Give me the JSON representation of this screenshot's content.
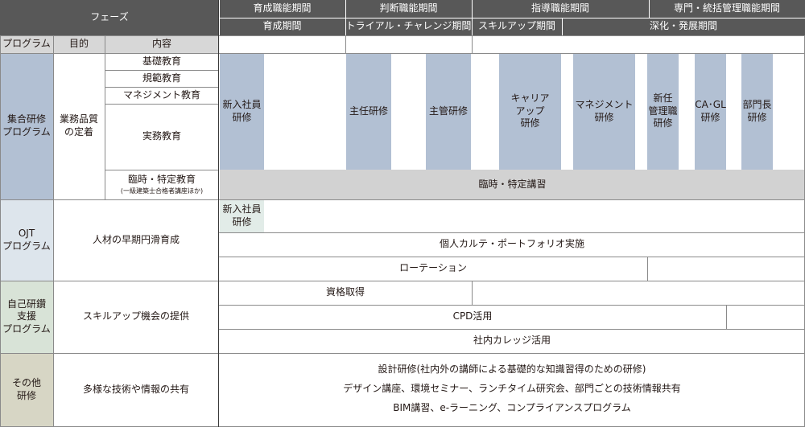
{
  "header": {
    "phase": "フェーズ",
    "periods_top": [
      "育成職能期間",
      "判断職能期間",
      "指導職能期間",
      "専門・統括管理職能期間"
    ],
    "periods_sub": [
      "育成期間",
      "トライアル・チャレンジ期間",
      "スキルアップ期間",
      "深化・発展期間"
    ]
  },
  "columns": {
    "program": "プログラム",
    "purpose": "目的",
    "content": "内容"
  },
  "group_training": {
    "program": "集合研修\nプログラム",
    "purpose": "業務品質\nの定着",
    "contents": [
      "基礎教育",
      "規範教育",
      "マネジメント教育",
      "実務教育"
    ],
    "adhoc_label": "臨時・特定教育",
    "adhoc_note": "(一級建築士合格者講座ほか)",
    "trainings": [
      "新入社員\n研修",
      "主任研修",
      "主管研修",
      "キャリア\nアップ\n研修",
      "マネジメント\n研修",
      "新任\n管理職\n研修",
      "CA･GL\n研修",
      "部門長\n研修"
    ],
    "adhoc_course": "臨時・特定講習"
  },
  "ojt": {
    "program": "OJT\nプログラム",
    "purpose": "人材の早期円滑育成",
    "new_employee": "新入社員\n研修",
    "karte": "個人カルテ・ポートフォリオ実施",
    "rotation": "ローテーション"
  },
  "self_dev": {
    "program": "自己研鑽\n支援\nプログラム",
    "purpose": "スキルアップ機会の提供",
    "qualification": "資格取得",
    "cpd": "CPD活用",
    "college": "社内カレッジ活用"
  },
  "other": {
    "program": "その他\n研修",
    "purpose": "多様な技術や情報の共有",
    "items": [
      "設計研修(社内外の講師による基礎的な知識習得のための研修)",
      "デザイン講座、環境セミナー、ランチタイム研究会、部門ごとの技術情報共有",
      "BIM講習、e-ラーニング、コンプライアンスプログラム"
    ]
  },
  "colors": {
    "header": "#585858",
    "training_block": "#b2c0d3",
    "adhoc_band": "#d2d2d2",
    "group_program": "#b2c0d3",
    "ojt_program": "#dde5ec",
    "self_dev_program": "#d8e3d7",
    "other_program": "#d7d6c5"
  }
}
